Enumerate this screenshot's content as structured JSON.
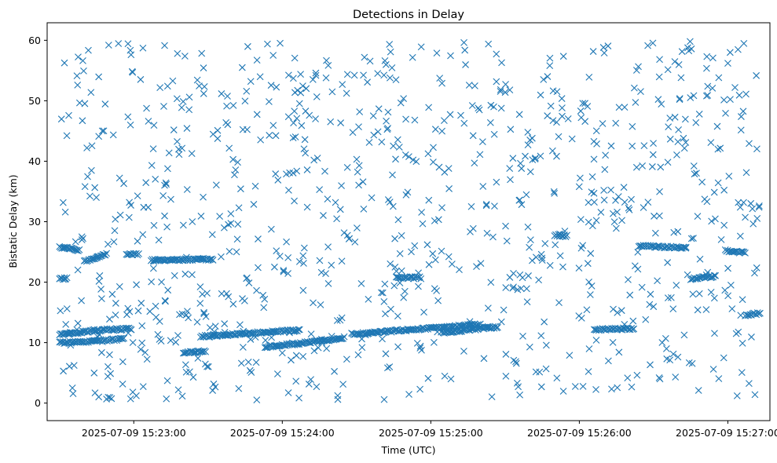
{
  "chart_data": {
    "type": "scatter",
    "title": "Detections in Delay",
    "xlabel": "Time (UTC)",
    "ylabel": "Bistatic Delay (km)",
    "xlim": [
      "2025-07-09 15:22:25",
      "2025-07-09 15:27:17"
    ],
    "ylim": [
      -2.9,
      62.9
    ],
    "x_ticks": [
      {
        "value": "2025-07-09 15:23:00",
        "label": "2025-07-09 15:23:00"
      },
      {
        "value": "2025-07-09 15:24:00",
        "label": "2025-07-09 15:24:00"
      },
      {
        "value": "2025-07-09 15:25:00",
        "label": "2025-07-09 15:25:00"
      },
      {
        "value": "2025-07-09 15:26:00",
        "label": "2025-07-09 15:26:00"
      },
      {
        "value": "2025-07-09 15:27:00",
        "label": "2025-07-09 15:27:00"
      }
    ],
    "y_ticks": [
      0,
      10,
      20,
      30,
      40,
      50,
      60
    ],
    "marker": "x",
    "grid": false,
    "series": [
      {
        "color": "#1f77b4",
        "tracks": [
          {
            "t0": "2025-07-09 15:22:30",
            "t1": "2025-07-09 15:22:44",
            "y0": 11.3,
            "y1": 12.0
          },
          {
            "t0": "2025-07-09 15:22:30",
            "t1": "2025-07-09 15:22:44",
            "y0": 10.0,
            "y1": 10.2
          },
          {
            "t0": "2025-07-09 15:22:44",
            "t1": "2025-07-09 15:22:59",
            "y0": 12.0,
            "y1": 12.3
          },
          {
            "t0": "2025-07-09 15:22:44",
            "t1": "2025-07-09 15:22:56",
            "y0": 10.2,
            "y1": 10.6
          },
          {
            "t0": "2025-07-09 15:22:30",
            "t1": "2025-07-09 15:22:38",
            "y0": 25.8,
            "y1": 25.3
          },
          {
            "t0": "2025-07-09 15:22:40",
            "t1": "2025-07-09 15:22:49",
            "y0": 23.4,
            "y1": 24.6
          },
          {
            "t0": "2025-07-09 15:22:57",
            "t1": "2025-07-09 15:23:02",
            "y0": 24.7,
            "y1": 24.6
          },
          {
            "t0": "2025-07-09 15:23:07",
            "t1": "2025-07-09 15:23:32",
            "y0": 23.6,
            "y1": 23.8
          },
          {
            "t0": "2025-07-09 15:22:30",
            "t1": "2025-07-09 15:22:33",
            "y0": 20.6,
            "y1": 20.6
          },
          {
            "t0": "2025-07-09 15:23:27",
            "t1": "2025-07-09 15:24:07",
            "y0": 11.0,
            "y1": 12.1
          },
          {
            "t0": "2025-07-09 15:23:53",
            "t1": "2025-07-09 15:24:17",
            "y0": 9.3,
            "y1": 10.3
          },
          {
            "t0": "2025-07-09 15:24:17",
            "t1": "2025-07-09 15:24:25",
            "y0": 10.3,
            "y1": 10.8
          },
          {
            "t0": "2025-07-09 15:24:28",
            "t1": "2025-07-09 15:25:20",
            "y0": 11.4,
            "y1": 13.0
          },
          {
            "t0": "2025-07-09 15:25:05",
            "t1": "2025-07-09 15:25:27",
            "y0": 11.7,
            "y1": 12.6
          },
          {
            "t0": "2025-07-09 15:24:46",
            "t1": "2025-07-09 15:24:56",
            "y0": 20.8,
            "y1": 20.7
          },
          {
            "t0": "2025-07-09 15:23:20",
            "t1": "2025-07-09 15:23:29",
            "y0": 8.3,
            "y1": 8.6
          },
          {
            "t0": "2025-07-09 15:22:49",
            "t1": "2025-07-09 15:22:51",
            "y0": 0.8,
            "y1": 0.8
          },
          {
            "t0": "2025-07-09 15:26:06",
            "t1": "2025-07-09 15:26:22",
            "y0": 12.2,
            "y1": 12.3
          },
          {
            "t0": "2025-07-09 15:26:24",
            "t1": "2025-07-09 15:26:43",
            "y0": 26.0,
            "y1": 25.7
          },
          {
            "t0": "2025-07-09 15:26:45",
            "t1": "2025-07-09 15:26:55",
            "y0": 20.5,
            "y1": 21.0
          },
          {
            "t0": "2025-07-09 15:26:59",
            "t1": "2025-07-09 15:27:07",
            "y0": 25.2,
            "y1": 24.9
          },
          {
            "t0": "2025-07-09 15:27:07",
            "t1": "2025-07-09 15:27:13",
            "y0": 14.5,
            "y1": 14.9
          },
          {
            "t0": "2025-07-09 15:25:50",
            "t1": "2025-07-09 15:25:55",
            "y0": 27.8,
            "y1": 27.6
          }
        ],
        "scatter_fill": {
          "t0": "2025-07-09 15:22:30",
          "t1": "2025-07-09 15:27:13",
          "y_range": [
            0.5,
            59.8
          ],
          "count": 950
        }
      }
    ]
  }
}
